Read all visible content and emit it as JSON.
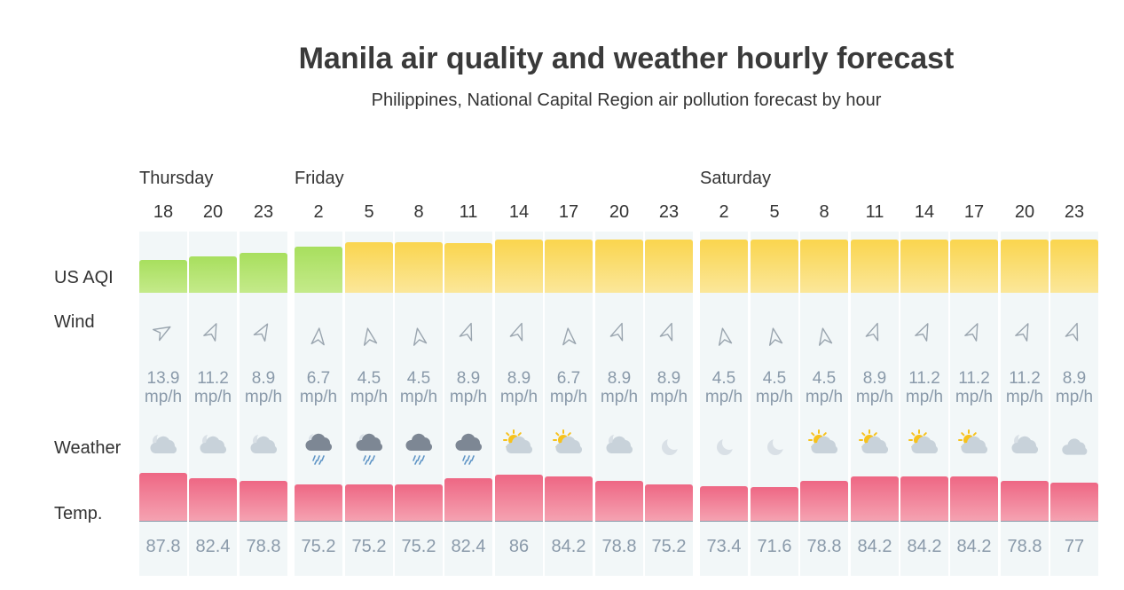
{
  "header": {
    "title": "Manila air quality and weather hourly forecast",
    "subtitle": "Philippines, National Capital Region air pollution forecast by hour"
  },
  "row_labels": {
    "aqi": "US AQI",
    "wind": "Wind",
    "weather": "Weather",
    "temp": "Temp."
  },
  "days": [
    {
      "label": "Thursday",
      "first_col": 0
    },
    {
      "label": "Friday",
      "first_col": 3
    },
    {
      "label": "Saturday",
      "first_col": 11
    }
  ],
  "colors": {
    "aqi_green": "#a8df5e",
    "aqi_yellow": "#fad54e",
    "temp": "#ee6784",
    "muted_text": "#8a9aaa"
  },
  "wind_unit": "mp/h",
  "forecast": [
    {
      "hour": "18",
      "aqi_level": "good",
      "aqi_fraction": 0.55,
      "wind_speed": "13.9",
      "wind_direction_deg": 150,
      "weather_icon": "partly-cloudy-night-icon",
      "temp": "87.8"
    },
    {
      "hour": "20",
      "aqi_level": "good",
      "aqi_fraction": 0.62,
      "wind_speed": "11.2",
      "wind_direction_deg": 115,
      "weather_icon": "partly-cloudy-night-icon",
      "temp": "82.4"
    },
    {
      "hour": "23",
      "aqi_level": "good",
      "aqi_fraction": 0.67,
      "wind_speed": "8.9",
      "wind_direction_deg": 120,
      "weather_icon": "partly-cloudy-night-icon",
      "temp": "78.8"
    },
    {
      "hour": "2",
      "aqi_level": "good",
      "aqi_fraction": 0.78,
      "wind_speed": "6.7",
      "wind_direction_deg": 95,
      "weather_icon": "rain-night-icon",
      "temp": "75.2"
    },
    {
      "hour": "5",
      "aqi_level": "moderate",
      "aqi_fraction": 0.86,
      "wind_speed": "4.5",
      "wind_direction_deg": 80,
      "weather_icon": "rain-night-icon",
      "temp": "75.2"
    },
    {
      "hour": "8",
      "aqi_level": "moderate",
      "aqi_fraction": 0.86,
      "wind_speed": "4.5",
      "wind_direction_deg": 80,
      "weather_icon": "rain-icon",
      "temp": "75.2"
    },
    {
      "hour": "11",
      "aqi_level": "moderate",
      "aqi_fraction": 0.84,
      "wind_speed": "8.9",
      "wind_direction_deg": 110,
      "weather_icon": "rain-icon",
      "temp": "82.4"
    },
    {
      "hour": "14",
      "aqi_level": "moderate",
      "aqi_fraction": 0.9,
      "wind_speed": "8.9",
      "wind_direction_deg": 110,
      "weather_icon": "partly-sunny-icon",
      "temp": "86"
    },
    {
      "hour": "17",
      "aqi_level": "moderate",
      "aqi_fraction": 0.9,
      "wind_speed": "6.7",
      "wind_direction_deg": 85,
      "weather_icon": "partly-sunny-icon",
      "temp": "84.2"
    },
    {
      "hour": "20",
      "aqi_level": "moderate",
      "aqi_fraction": 0.9,
      "wind_speed": "8.9",
      "wind_direction_deg": 110,
      "weather_icon": "partly-cloudy-night-icon",
      "temp": "78.8"
    },
    {
      "hour": "23",
      "aqi_level": "moderate",
      "aqi_fraction": 0.9,
      "wind_speed": "8.9",
      "wind_direction_deg": 110,
      "weather_icon": "moon-icon",
      "temp": "75.2"
    },
    {
      "hour": "2",
      "aqi_level": "moderate",
      "aqi_fraction": 0.9,
      "wind_speed": "4.5",
      "wind_direction_deg": 80,
      "weather_icon": "moon-icon",
      "temp": "73.4"
    },
    {
      "hour": "5",
      "aqi_level": "moderate",
      "aqi_fraction": 0.9,
      "wind_speed": "4.5",
      "wind_direction_deg": 80,
      "weather_icon": "moon-icon",
      "temp": "71.6"
    },
    {
      "hour": "8",
      "aqi_level": "moderate",
      "aqi_fraction": 0.9,
      "wind_speed": "4.5",
      "wind_direction_deg": 80,
      "weather_icon": "partly-sunny-icon",
      "temp": "78.8"
    },
    {
      "hour": "11",
      "aqi_level": "moderate",
      "aqi_fraction": 0.9,
      "wind_speed": "8.9",
      "wind_direction_deg": 110,
      "weather_icon": "partly-sunny-icon",
      "temp": "84.2"
    },
    {
      "hour": "14",
      "aqi_level": "moderate",
      "aqi_fraction": 0.9,
      "wind_speed": "11.2",
      "wind_direction_deg": 115,
      "weather_icon": "partly-sunny-icon",
      "temp": "84.2"
    },
    {
      "hour": "17",
      "aqi_level": "moderate",
      "aqi_fraction": 0.9,
      "wind_speed": "11.2",
      "wind_direction_deg": 115,
      "weather_icon": "partly-sunny-icon",
      "temp": "84.2"
    },
    {
      "hour": "20",
      "aqi_level": "moderate",
      "aqi_fraction": 0.9,
      "wind_speed": "11.2",
      "wind_direction_deg": 115,
      "weather_icon": "partly-cloudy-night-icon",
      "temp": "78.8"
    },
    {
      "hour": "23",
      "aqi_level": "moderate",
      "aqi_fraction": 0.9,
      "wind_speed": "8.9",
      "wind_direction_deg": 110,
      "weather_icon": "cloudy-icon",
      "temp": "77"
    }
  ]
}
